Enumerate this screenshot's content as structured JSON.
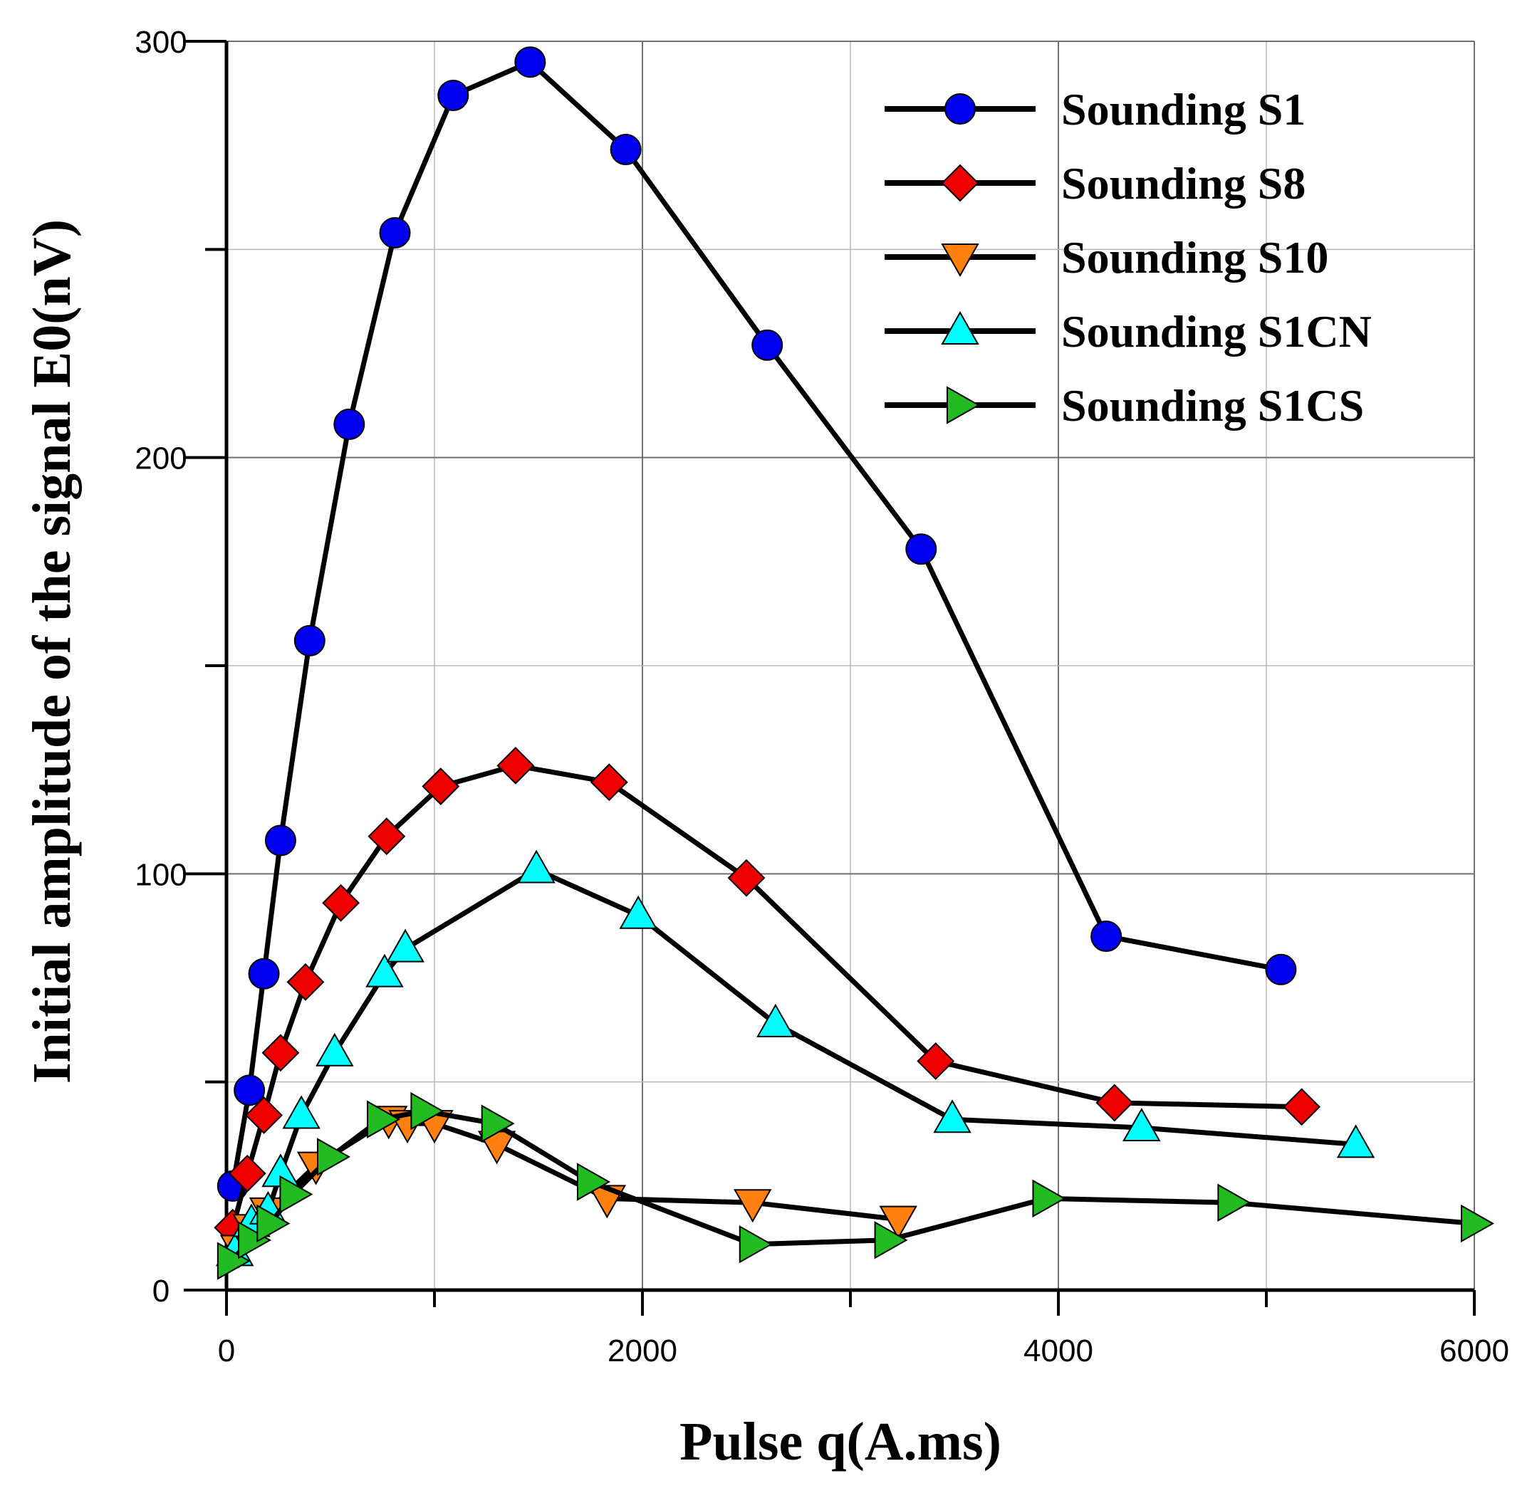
{
  "chart_data": {
    "type": "line",
    "xlabel": "Pulse q(A.ms)",
    "ylabel": "Initial amplitude of the signal E0(nV)",
    "xlim": [
      0,
      6000
    ],
    "ylim": [
      0,
      300
    ],
    "x_ticks": [
      0,
      2000,
      4000,
      6000
    ],
    "y_ticks": [
      0,
      100,
      200,
      300
    ],
    "x_tick_labels": [
      "0",
      "2000",
      "4000",
      "6000"
    ],
    "y_tick_labels": [
      "0",
      "100",
      "200",
      "300"
    ],
    "grid": true,
    "legend_position": "top-right",
    "series": [
      {
        "name": "Sounding S1",
        "marker": "circle",
        "color": "#0000ee",
        "x": [
          30,
          110,
          180,
          260,
          400,
          590,
          810,
          1090,
          1460,
          1920,
          2600,
          3340,
          4230,
          5070
        ],
        "y": [
          25,
          48,
          76,
          108,
          156,
          208,
          254,
          287,
          295,
          274,
          227,
          178,
          85,
          77
        ]
      },
      {
        "name": "Sounding S8",
        "marker": "diamond",
        "color": "#ee0000",
        "x": [
          30,
          100,
          180,
          260,
          380,
          550,
          770,
          1030,
          1390,
          1840,
          2500,
          3410,
          4270,
          5170
        ],
        "y": [
          15,
          28,
          42,
          57,
          74,
          93,
          109,
          121,
          126,
          122,
          99,
          55,
          45,
          44
        ]
      },
      {
        "name": "Sounding S10",
        "marker": "triangle-down",
        "color": "#ff7f10",
        "x": [
          60,
          120,
          200,
          430,
          780,
          870,
          1000,
          1300,
          1830,
          2530,
          3230
        ],
        "y": [
          10,
          15,
          19,
          30,
          41,
          40,
          40,
          35,
          22,
          21,
          17
        ]
      },
      {
        "name": "Sounding S1CN",
        "marker": "triangle-up",
        "color": "#00ffff",
        "x": [
          40,
          120,
          200,
          260,
          360,
          520,
          760,
          860,
          1490,
          1980,
          2640,
          3490,
          4400,
          5430
        ],
        "y": [
          9,
          16,
          19,
          28,
          42,
          57,
          76,
          82,
          101,
          90,
          64,
          41,
          39,
          35
        ]
      },
      {
        "name": "Sounding S1CS",
        "marker": "triangle-right",
        "color": "#22bb22",
        "x": [
          20,
          120,
          210,
          320,
          500,
          740,
          950,
          1290,
          1750,
          2530,
          3180,
          3940,
          4830,
          6000
        ],
        "y": [
          7,
          12,
          16,
          23,
          32,
          41,
          43,
          40,
          26,
          11,
          12,
          22,
          21,
          16
        ]
      }
    ]
  }
}
